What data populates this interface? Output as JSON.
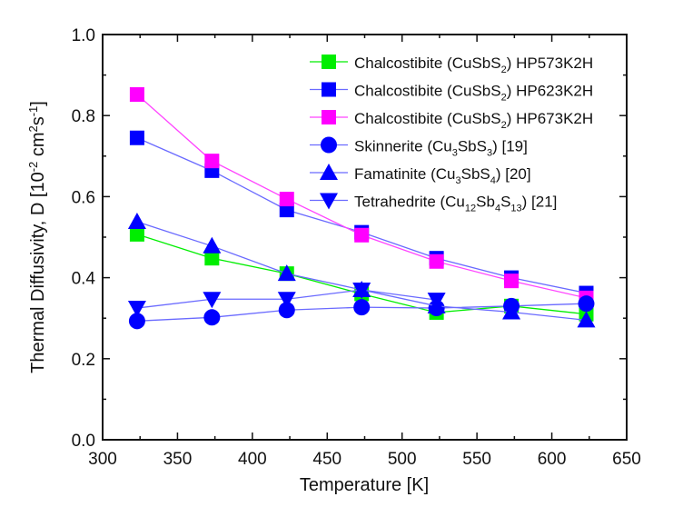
{
  "chart_data": {
    "type": "line",
    "xlabel": "Temperature [K]",
    "ylabel": "Thermal Diffusivity, D [10^-2 cm^2 s^-1]",
    "xlim": [
      300,
      650
    ],
    "ylim": [
      0.0,
      1.0
    ],
    "xticks": [
      "300",
      "350",
      "400",
      "450",
      "500",
      "550",
      "600",
      "650"
    ],
    "yticks": [
      "0.0",
      "0.2",
      "0.4",
      "0.6",
      "0.8",
      "1.0"
    ],
    "grid": false,
    "legend_position": "top-right",
    "series": [
      {
        "name": "Chalcostibite (CuSbS2) HP573K2H",
        "label_parts": [
          "Chalcostibite (CuSbS",
          "2",
          ") HP573K2H"
        ],
        "color": "#00ee00",
        "line_color": "#00ee00",
        "marker": "square",
        "x": [
          323,
          373,
          423,
          473,
          523,
          573,
          623
        ],
        "y": [
          0.507,
          0.448,
          0.41,
          0.36,
          0.314,
          0.33,
          0.31
        ]
      },
      {
        "name": "Chalcostibite (CuSbS2) HP623K2H",
        "label_parts": [
          "Chalcostibite (CuSbS",
          "2",
          ") HP623K2H"
        ],
        "color": "#0000ff",
        "line_color": "#6a6aff",
        "marker": "square",
        "x": [
          323,
          373,
          423,
          473,
          523,
          573,
          623
        ],
        "y": [
          0.745,
          0.664,
          0.567,
          0.512,
          0.448,
          0.4,
          0.362
        ]
      },
      {
        "name": "Chalcostibite (CuSbS2) HP673K2H",
        "label_parts": [
          "Chalcostibite (CuSbS",
          "2",
          ") HP673K2H"
        ],
        "color": "#ff00ff",
        "line_color": "#ff44ff",
        "marker": "square",
        "x": [
          323,
          373,
          423,
          473,
          523,
          573,
          623
        ],
        "y": [
          0.852,
          0.688,
          0.594,
          0.505,
          0.44,
          0.392,
          0.35
        ]
      },
      {
        "name": "Skinnerite (Cu3SbS3) [19]",
        "label_parts": [
          "Skinnerite (Cu",
          "3",
          "SbS",
          "3",
          ")  [19]"
        ],
        "color": "#0000ff",
        "line_color": "#6a6aff",
        "marker": "circle",
        "x": [
          323,
          373,
          423,
          473,
          523,
          573,
          623
        ],
        "y": [
          0.293,
          0.302,
          0.32,
          0.327,
          0.325,
          0.33,
          0.336
        ]
      },
      {
        "name": "Famatinite (Cu3SbS4) [20]",
        "label_parts": [
          "Famatinite (Cu",
          "3",
          "SbS",
          "4",
          ")  [20]"
        ],
        "color": "#0000ff",
        "line_color": "#6a6aff",
        "marker": "triangle-up",
        "x": [
          323,
          373,
          423,
          473,
          523,
          573,
          623
        ],
        "y": [
          0.538,
          0.478,
          0.41,
          0.37,
          0.33,
          0.315,
          0.295
        ]
      },
      {
        "name": "Tetrahedrite (Cu12Sb4S13) [21]",
        "label_parts": [
          "Tetrahedrite (Cu",
          "12",
          "Sb",
          "4",
          "S",
          "13",
          ")  [21]"
        ],
        "color": "#0000ff",
        "line_color": "#6a6aff",
        "marker": "triangle-down",
        "x": [
          323,
          373,
          423,
          473,
          523
        ],
        "y": [
          0.325,
          0.347,
          0.347,
          0.37,
          0.345
        ]
      }
    ]
  }
}
